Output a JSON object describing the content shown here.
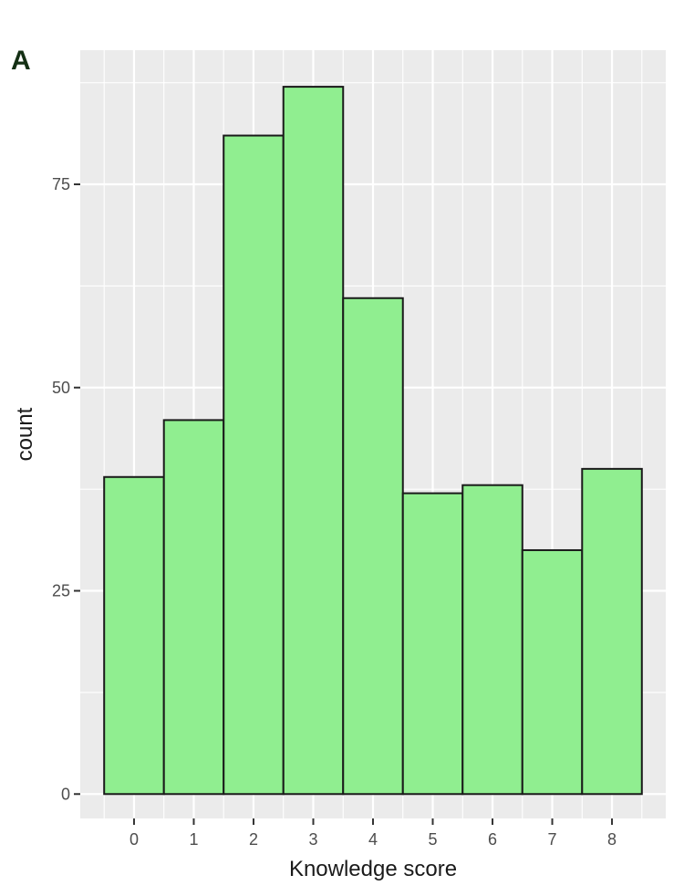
{
  "panel_label": "A",
  "chart_data": {
    "type": "bar",
    "categories": [
      "0",
      "1",
      "2",
      "3",
      "4",
      "5",
      "6",
      "7",
      "8"
    ],
    "values": [
      39,
      46,
      81,
      87,
      61,
      37,
      38,
      30,
      40
    ],
    "xlabel": "Knowledge score",
    "ylabel": "count",
    "ylim": [
      -3,
      91.5
    ],
    "yticks": [
      0,
      25,
      50,
      75
    ],
    "grid": true,
    "bar_fill": "#90ee90",
    "bar_stroke": "#1a1a1a",
    "panel_background": "#ebebeb",
    "gridline_color": "#ffffff"
  }
}
